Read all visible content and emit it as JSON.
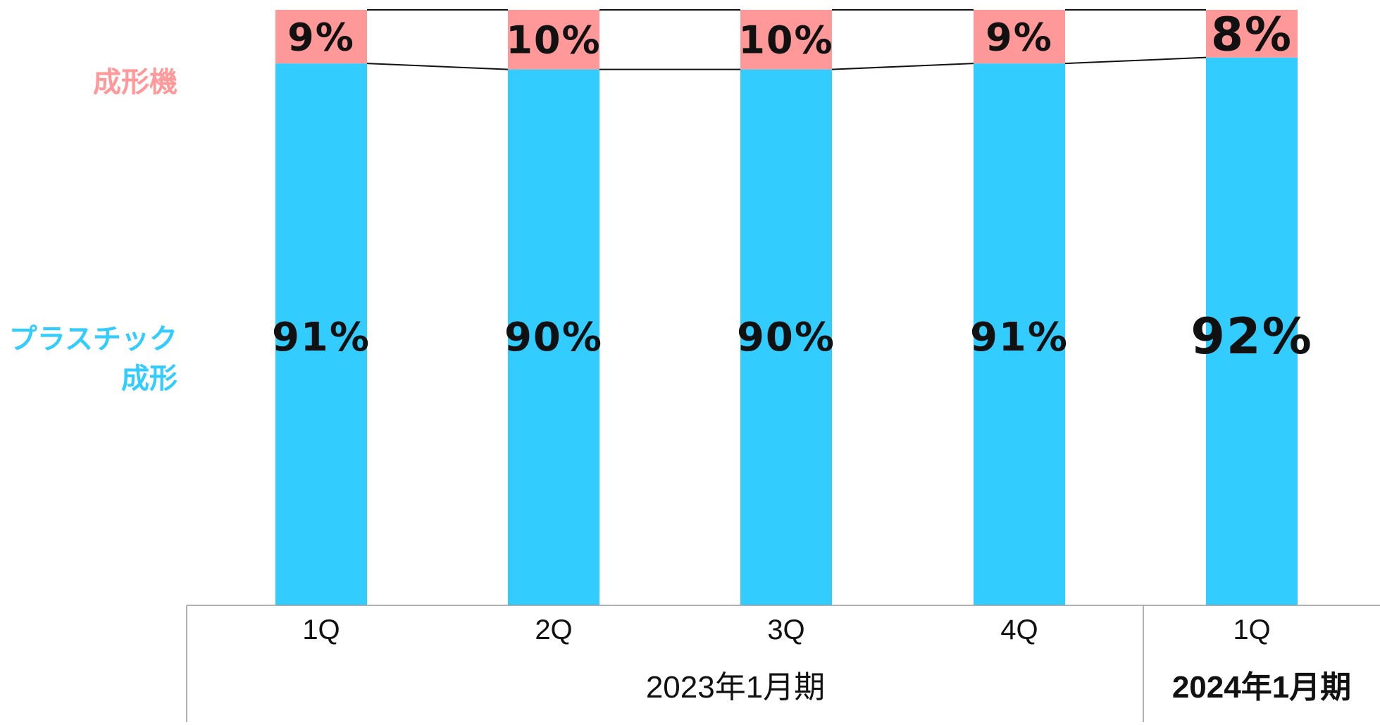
{
  "chart_data": {
    "type": "bar",
    "stacked": true,
    "percent_stacked": true,
    "categories": [
      "1Q",
      "2Q",
      "3Q",
      "4Q",
      "1Q"
    ],
    "groups": [
      {
        "label": "2023年1月期",
        "categories": [
          "1Q",
          "2Q",
          "3Q",
          "4Q"
        ],
        "bold": false
      },
      {
        "label": "2024年1月期",
        "categories": [
          "1Q"
        ],
        "bold": true
      }
    ],
    "series": [
      {
        "name": "プラスチック成形",
        "legend_lines": [
          "プラスチック",
          "成形"
        ],
        "color": "#33ccff",
        "values": [
          91,
          90,
          90,
          91,
          92
        ],
        "labels": [
          "91%",
          "90%",
          "90%",
          "91%",
          "92%"
        ]
      },
      {
        "name": "成形機",
        "legend_lines": [
          "成形機"
        ],
        "color": "#ff9999",
        "values": [
          9,
          10,
          10,
          9,
          8
        ],
        "labels": [
          "9%",
          "10%",
          "10%",
          "9%",
          "8%"
        ]
      }
    ],
    "ylim": [
      0,
      100
    ],
    "series_lines": true,
    "grid": false,
    "legend": "left"
  }
}
